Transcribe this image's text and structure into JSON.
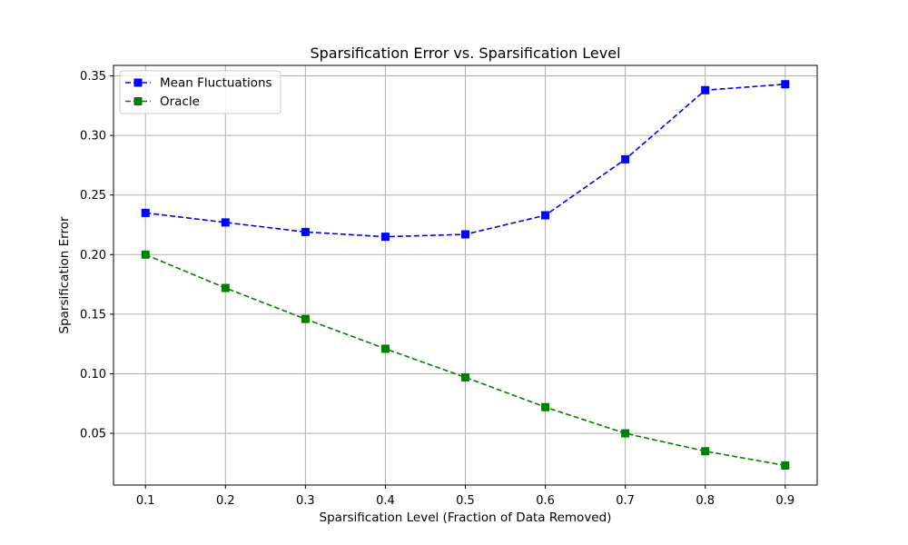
{
  "chart_data": {
    "type": "line",
    "title": "Sparsification Error vs. Sparsification Level",
    "xlabel": "Sparsification Level (Fraction of Data Removed)",
    "ylabel": "Sparsification Error",
    "x": [
      0.1,
      0.2,
      0.3,
      0.4,
      0.5,
      0.6,
      0.7,
      0.8,
      0.9
    ],
    "x_ticks": [
      "0.1",
      "0.2",
      "0.3",
      "0.4",
      "0.5",
      "0.6",
      "0.7",
      "0.8",
      "0.9"
    ],
    "y_ticks": [
      "0.05",
      "0.10",
      "0.15",
      "0.20",
      "0.25",
      "0.30",
      "0.35"
    ],
    "xlim": [
      0.06,
      0.94
    ],
    "ylim": [
      0.0066,
      0.3588
    ],
    "grid": true,
    "legend_position": "top-left",
    "series": [
      {
        "name": "Mean Fluctuations",
        "color": "#0000ff",
        "line_style": "dashed",
        "marker": "square",
        "values": [
          0.235,
          0.227,
          0.219,
          0.215,
          0.217,
          0.233,
          0.28,
          0.338,
          0.343
        ]
      },
      {
        "name": "Oracle",
        "color": "#008000",
        "line_style": "dashed",
        "marker": "square",
        "values": [
          0.2,
          0.172,
          0.146,
          0.121,
          0.097,
          0.072,
          0.05,
          0.035,
          0.023
        ]
      }
    ]
  }
}
